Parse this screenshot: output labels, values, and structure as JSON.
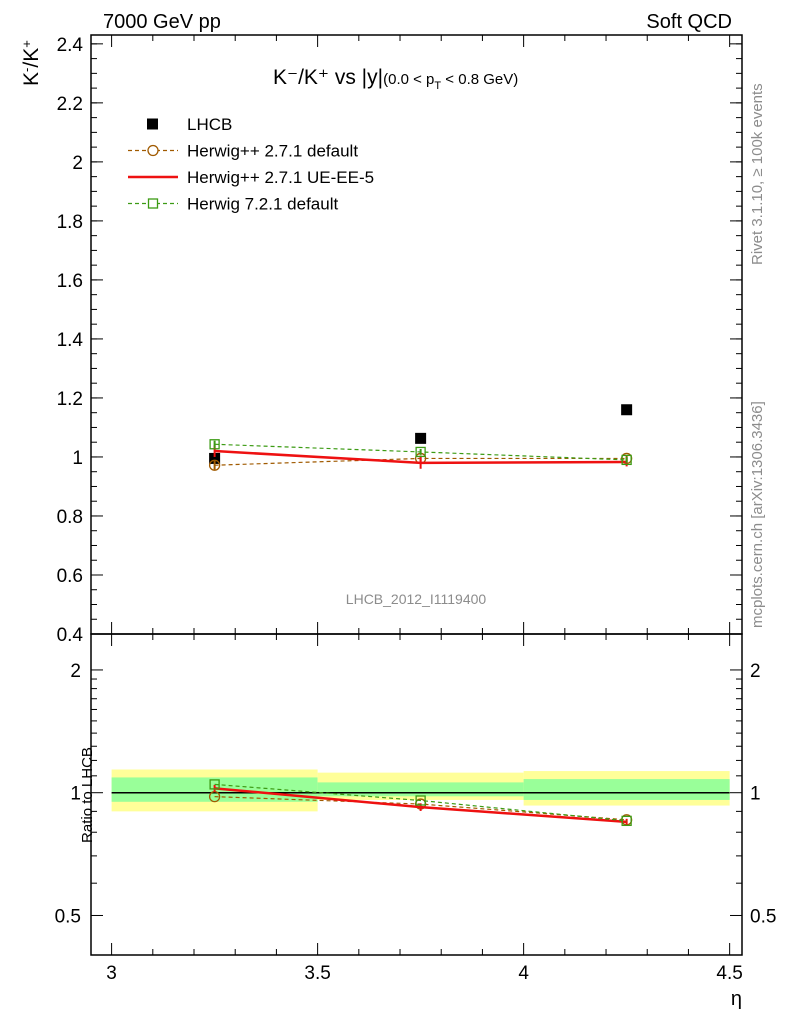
{
  "header": {
    "left": "7000 GeV pp",
    "right": "Soft QCD"
  },
  "side_text": {
    "rivet": "Rivet 3.1.10, ≥ 100k events",
    "mcplots": "mcplots.cern.ch [arXiv:1306.3436]"
  },
  "analysis_id": "LHCB_2012_I1119400",
  "chart_data": [
    {
      "type": "scatter",
      "title": "K⁻/K⁺ vs |y|(0.0 < p_T < 0.8 GeV)",
      "title_main": "K⁻/K⁺ vs |y|",
      "title_sub": "(0.0 < p",
      "title_sub_T": "T",
      "title_sub_end": " < 0.8 GeV)",
      "ylabel": "K⁻/K⁺",
      "xlabel": "η",
      "xlim": [
        3.0,
        4.5
      ],
      "ylim": [
        0.4,
        2.43
      ],
      "yticks": [
        0.4,
        0.6,
        0.8,
        1.0,
        1.2,
        1.4,
        1.6,
        1.8,
        2.0,
        2.2,
        2.4
      ],
      "ytick_labels": [
        "0.4",
        "0.6",
        "0.8",
        "1",
        "1.2",
        "1.4",
        "1.6",
        "1.8",
        "2",
        "2.2",
        "2.4"
      ],
      "legend_position": "top-left",
      "x": [
        3.25,
        3.75,
        4.25
      ],
      "series": [
        {
          "name": "LHCB",
          "kind": "data",
          "color": "#000000",
          "values": [
            0.995,
            1.063,
            1.16
          ],
          "yerr": [
            0.015,
            0.01,
            0.01
          ],
          "xerr": [
            0.25,
            0.25,
            0.25
          ]
        },
        {
          "name": "Herwig++ 2.7.1 default",
          "kind": "mc",
          "color": "#a05a00",
          "style": "dashed",
          "marker": "circle",
          "values": [
            0.972,
            0.995,
            0.995
          ],
          "yerr": [
            0.015,
            0.01,
            0.01
          ]
        },
        {
          "name": "Herwig++ 2.7.1 UE-EE-5",
          "kind": "mc",
          "color": "#ee1111",
          "style": "solid",
          "marker": "none",
          "values": [
            1.02,
            0.98,
            0.983
          ],
          "yerr": [
            0.02,
            0.02,
            0.015
          ]
        },
        {
          "name": "Herwig 7.2.1 default",
          "kind": "mc",
          "color": "#3c9b14",
          "style": "dashed",
          "marker": "square",
          "values": [
            1.043,
            1.017,
            0.99
          ],
          "yerr": [
            0.012,
            0.01,
            0.01
          ]
        }
      ]
    },
    {
      "type": "scatter",
      "ylabel": "Ratio to LHCB",
      "xlabel": "η",
      "xlim": [
        3.0,
        4.5
      ],
      "ylim": [
        0.4,
        2.45
      ],
      "yscale": "log",
      "yticks": [
        0.5,
        1,
        2
      ],
      "ytick_labels": [
        "0.5",
        "1",
        "2"
      ],
      "xticks": [
        3.0,
        3.5,
        4.0,
        4.5
      ],
      "xtick_labels": [
        "3",
        "3.5",
        "4",
        "4.5"
      ],
      "bands": [
        {
          "x0": 3.0,
          "x1": 3.5,
          "yellow": [
            0.9,
            1.14
          ],
          "green": [
            0.95,
            1.09
          ]
        },
        {
          "x0": 3.5,
          "x1": 4.0,
          "yellow": [
            0.96,
            1.12
          ],
          "green": [
            0.98,
            1.06
          ]
        },
        {
          "x0": 4.0,
          "x1": 4.5,
          "yellow": [
            0.93,
            1.13
          ],
          "green": [
            0.96,
            1.08
          ]
        }
      ],
      "x": [
        3.25,
        3.75,
        4.25
      ],
      "series": [
        {
          "name": "Herwig++ 2.7.1 default",
          "color": "#a05a00",
          "style": "dashed",
          "marker": "circle",
          "values": [
            0.978,
            0.938,
            0.858
          ]
        },
        {
          "name": "Herwig++ 2.7.1 UE-EE-5",
          "color": "#ee1111",
          "style": "solid",
          "marker": "none",
          "values": [
            1.025,
            0.922,
            0.848
          ],
          "yerr": [
            0.02,
            0.02,
            0.015
          ]
        },
        {
          "name": "Herwig 7.2.1 default",
          "color": "#3c9b14",
          "style": "dashed",
          "marker": "square",
          "values": [
            1.048,
            0.957,
            0.853
          ]
        }
      ]
    }
  ]
}
